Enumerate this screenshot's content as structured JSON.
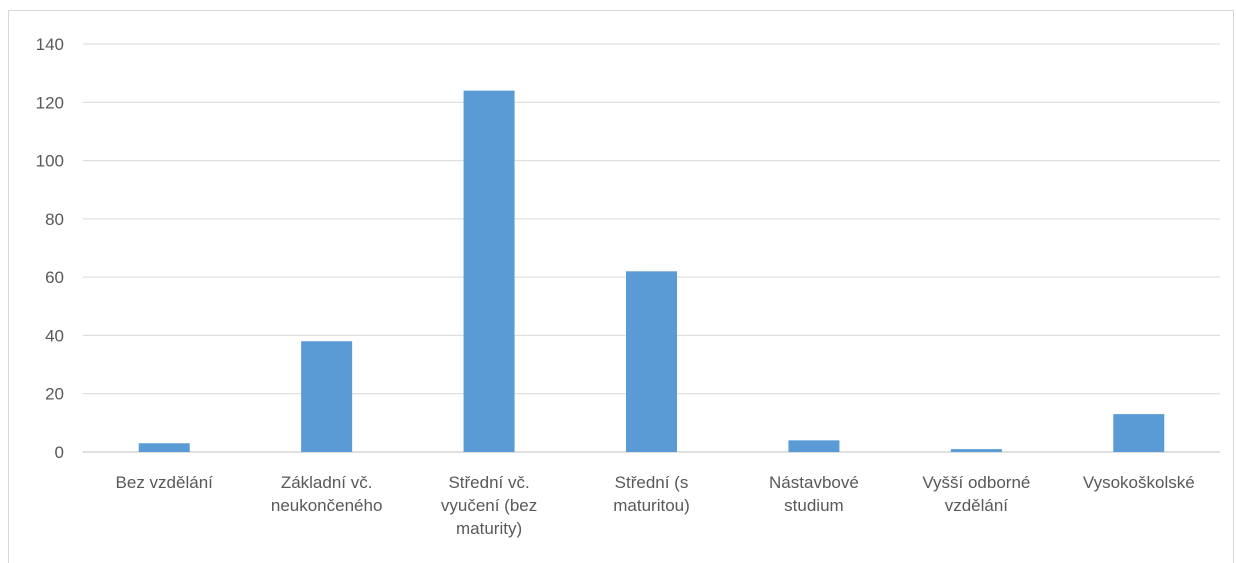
{
  "chart_data": {
    "type": "bar",
    "title": "",
    "xlabel": "",
    "ylabel": "",
    "ylim": [
      0,
      140
    ],
    "y_ticks": [
      0,
      20,
      40,
      60,
      80,
      100,
      120,
      140
    ],
    "grid": true,
    "legend": "none",
    "categories": [
      [
        "Bez vzdělání"
      ],
      [
        "Základní vč.",
        "neukončeného"
      ],
      [
        "Střední vč.",
        "vyučení (bez",
        "maturity)"
      ],
      [
        "Střední (s",
        "maturitou)"
      ],
      [
        "Nástavbové",
        "studium"
      ],
      [
        "Vyšší odborné",
        "vzdělání"
      ],
      [
        "Vysokoškolské"
      ]
    ],
    "values": [
      3,
      38,
      124,
      62,
      4,
      1,
      13
    ],
    "colors": {
      "bar": "#5b9bd5",
      "grid": "#d9d9d9",
      "axis": "#bfbfbf",
      "text": "#595959"
    }
  }
}
